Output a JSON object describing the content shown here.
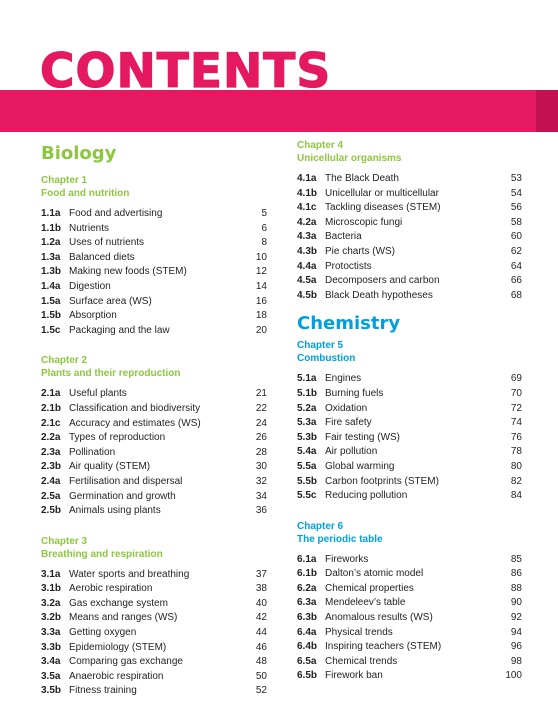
{
  "title": "CONTENTS",
  "colors": {
    "banner": "#e5195f",
    "biology": "#8dc63f",
    "chemistry": "#00a0df"
  },
  "biology": {
    "subject": "Biology",
    "chapters": [
      {
        "number": "Chapter 1",
        "title": "Food and nutrition",
        "entries": [
          {
            "code": "1.1a",
            "title": "Food and advertising",
            "page": "5"
          },
          {
            "code": "1.1b",
            "title": "Nutrients",
            "page": "6"
          },
          {
            "code": "1.2a",
            "title": "Uses of nutrients",
            "page": "8"
          },
          {
            "code": "1.3a",
            "title": "Balanced diets",
            "page": "10"
          },
          {
            "code": "1.3b",
            "title": "Making new foods (STEM)",
            "page": "12"
          },
          {
            "code": "1.4a",
            "title": "Digestion",
            "page": "14"
          },
          {
            "code": "1.5a",
            "title": "Surface area (WS)",
            "page": "16"
          },
          {
            "code": "1.5b",
            "title": "Absorption",
            "page": "18"
          },
          {
            "code": "1.5c",
            "title": "Packaging and the law",
            "page": "20"
          }
        ]
      },
      {
        "number": "Chapter 2",
        "title": "Plants and their reproduction",
        "entries": [
          {
            "code": "2.1a",
            "title": "Useful plants",
            "page": "21"
          },
          {
            "code": "2.1b",
            "title": "Classification and biodiversity",
            "page": "22"
          },
          {
            "code": "2.1c",
            "title": "Accuracy and estimates (WS)",
            "page": "24"
          },
          {
            "code": "2.2a",
            "title": "Types of reproduction",
            "page": "26"
          },
          {
            "code": "2.3a",
            "title": "Pollination",
            "page": "28"
          },
          {
            "code": "2.3b",
            "title": "Air quality (STEM)",
            "page": "30"
          },
          {
            "code": "2.4a",
            "title": "Fertilisation and dispersal",
            "page": "32"
          },
          {
            "code": "2.5a",
            "title": "Germination and growth",
            "page": "34"
          },
          {
            "code": "2.5b",
            "title": "Animals using plants",
            "page": "36"
          }
        ]
      },
      {
        "number": "Chapter 3",
        "title": "Breathing and respiration",
        "entries": [
          {
            "code": "3.1a",
            "title": "Water sports and breathing",
            "page": "37"
          },
          {
            "code": "3.1b",
            "title": "Aerobic respiration",
            "page": "38"
          },
          {
            "code": "3.2a",
            "title": "Gas exchange system",
            "page": "40"
          },
          {
            "code": "3.2b",
            "title": "Means and ranges (WS)",
            "page": "42"
          },
          {
            "code": "3.3a",
            "title": "Getting oxygen",
            "page": "44"
          },
          {
            "code": "3.3b",
            "title": "Epidemiology (STEM)",
            "page": "46"
          },
          {
            "code": "3.4a",
            "title": "Comparing gas exchange",
            "page": "48"
          },
          {
            "code": "3.5a",
            "title": "Anaerobic respiration",
            "page": "50"
          },
          {
            "code": "3.5b",
            "title": "Fitness training",
            "page": "52"
          }
        ]
      },
      {
        "number": "Chapter 4",
        "title": "Unicellular organisms",
        "entries": [
          {
            "code": "4.1a",
            "title": "The Black Death",
            "page": "53"
          },
          {
            "code": "4.1b",
            "title": "Unicellular or multicellular",
            "page": "54"
          },
          {
            "code": "4.1c",
            "title": "Tackling diseases (STEM)",
            "page": "56"
          },
          {
            "code": "4.2a",
            "title": "Microscopic fungi",
            "page": "58"
          },
          {
            "code": "4.3a",
            "title": "Bacteria",
            "page": "60"
          },
          {
            "code": "4.3b",
            "title": "Pie charts (WS)",
            "page": "62"
          },
          {
            "code": "4.4a",
            "title": "Protoctists",
            "page": "64"
          },
          {
            "code": "4.5a",
            "title": "Decomposers and carbon",
            "page": "66"
          },
          {
            "code": "4.5b",
            "title": "Black Death hypotheses",
            "page": "68"
          }
        ]
      }
    ]
  },
  "chemistry": {
    "subject": "Chemistry",
    "chapters": [
      {
        "number": "Chapter 5",
        "title": "Combustion",
        "entries": [
          {
            "code": "5.1a",
            "title": "Engines",
            "page": "69"
          },
          {
            "code": "5.1b",
            "title": "Burning fuels",
            "page": "70"
          },
          {
            "code": "5.2a",
            "title": "Oxidation",
            "page": "72"
          },
          {
            "code": "5.3a",
            "title": "Fire safety",
            "page": "74"
          },
          {
            "code": "5.3b",
            "title": "Fair testing (WS)",
            "page": "76"
          },
          {
            "code": "5.4a",
            "title": "Air pollution",
            "page": "78"
          },
          {
            "code": "5.5a",
            "title": "Global warming",
            "page": "80"
          },
          {
            "code": "5.5b",
            "title": "Carbon footprints (STEM)",
            "page": "82"
          },
          {
            "code": "5.5c",
            "title": "Reducing pollution",
            "page": "84"
          }
        ]
      },
      {
        "number": "Chapter 6",
        "title": "The periodic table",
        "entries": [
          {
            "code": "6.1a",
            "title": "Fireworks",
            "page": "85"
          },
          {
            "code": "6.1b",
            "title": "Dalton’s atomic model",
            "page": "86"
          },
          {
            "code": "6.2a",
            "title": "Chemical properties",
            "page": "88"
          },
          {
            "code": "6.3a",
            "title": "Mendeleev’s table",
            "page": "90"
          },
          {
            "code": "6.3b",
            "title": "Anomalous results (WS)",
            "page": "92"
          },
          {
            "code": "6.4a",
            "title": "Physical trends",
            "page": "94"
          },
          {
            "code": "6.4b",
            "title": "Inspiring teachers (STEM)",
            "page": "96"
          },
          {
            "code": "6.5a",
            "title": "Chemical trends",
            "page": "98"
          },
          {
            "code": "6.5b",
            "title": "Firework ban",
            "page": "100"
          }
        ]
      }
    ]
  }
}
